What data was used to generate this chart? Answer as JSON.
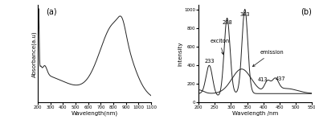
{
  "panel_a": {
    "label": "(a)",
    "xlabel": "Wavelength(nm)",
    "ylabel": "Absorbance(a.u)",
    "xlim": [
      200,
      1100
    ],
    "xticks": [
      200,
      300,
      400,
      500,
      600,
      700,
      800,
      900,
      1000,
      1100
    ],
    "xtick_labels": [
      "200",
      "300",
      "400",
      "500",
      "600",
      "700",
      "800",
      "900",
      "1000",
      "1100"
    ],
    "curve_color": "#222222"
  },
  "panel_b": {
    "label": "(b)",
    "xlabel": "Wavelength /nm",
    "ylabel": "Intensity",
    "xlim": [
      200,
      550
    ],
    "ylim": [
      0,
      1050
    ],
    "yticks": [
      0,
      200,
      400,
      600,
      800,
      1000
    ],
    "ytick_labels": [
      "0",
      "200",
      "400",
      "600",
      "800",
      "1000"
    ],
    "xticks": [
      200,
      250,
      300,
      350,
      400,
      450,
      500,
      550
    ],
    "xtick_labels": [
      "200",
      "250",
      "300",
      "350",
      "400",
      "450",
      "500",
      "550"
    ],
    "curve_color": "#222222"
  }
}
